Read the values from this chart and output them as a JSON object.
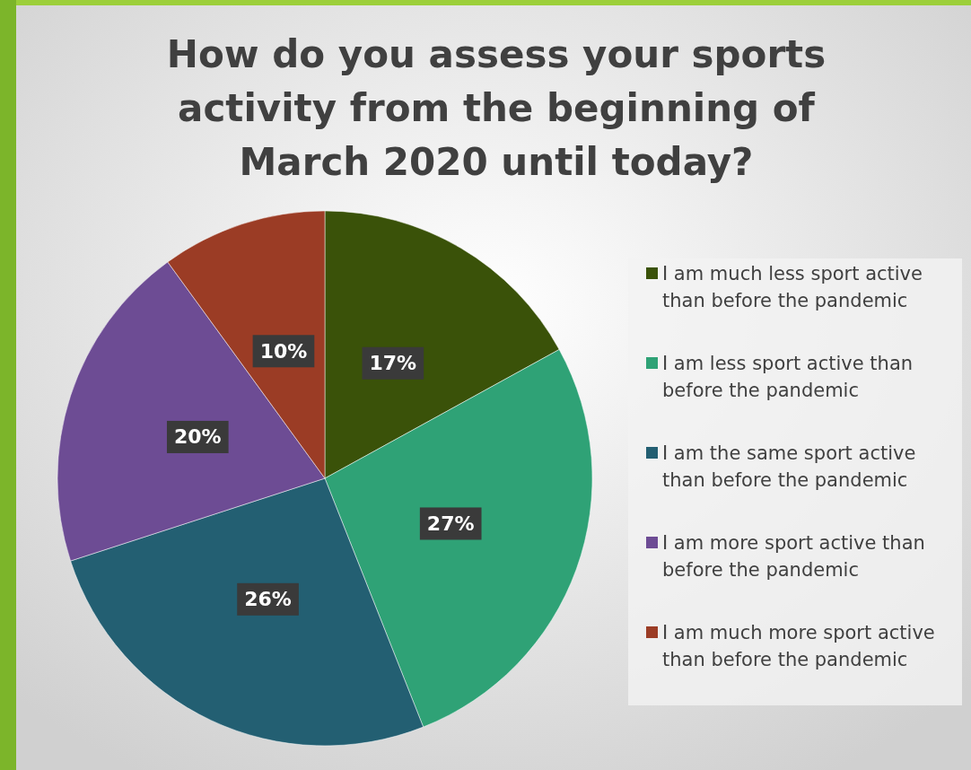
{
  "chart_data": {
    "type": "pie",
    "title": "How do you assess your sports activity from the beginning of March 2020 until today?",
    "categories": [
      "I am much less sport active than before the pandemic",
      "I am less sport active than before the pandemic",
      "I am the same sport active than before the pandemic",
      "I am more sport active than before the pandemic",
      "I am much more sport active than before the pandemic"
    ],
    "values": [
      17,
      27,
      26,
      20,
      10
    ],
    "colors": [
      "#3a5209",
      "#2fa276",
      "#235f72",
      "#6d4c94",
      "#9b3c25"
    ],
    "data_labels": true,
    "value_labels": [
      "17%",
      "27%",
      "26%",
      "20%",
      "10%"
    ],
    "legend": "right"
  }
}
